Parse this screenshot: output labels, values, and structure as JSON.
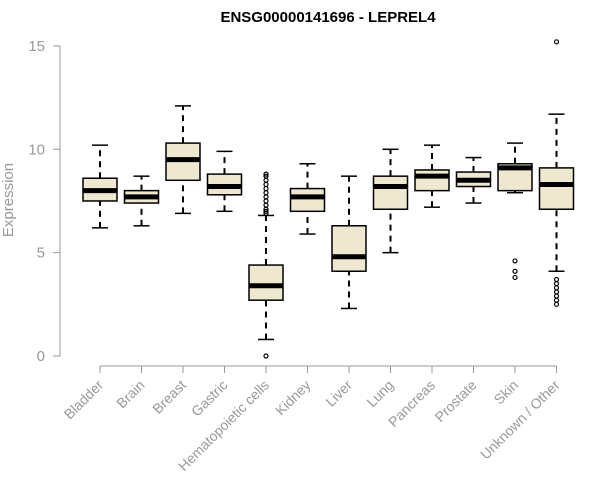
{
  "chart_data": {
    "type": "box",
    "title": "ENSG00000141696 - LEPREL4",
    "xlabel": "",
    "ylabel": "Expression",
    "ylim": [
      0,
      15
    ],
    "yticks": [
      0,
      5,
      10,
      15
    ],
    "box_fill": "#efe8d0",
    "box_stroke": "#000000",
    "categories": [
      "Bladder",
      "Brain",
      "Breast",
      "Gastric",
      "Hematopoietic cells",
      "Kidney",
      "Liver",
      "Lung",
      "Pancreas",
      "Prostate",
      "Skin",
      "Unknown / Other"
    ],
    "boxes": [
      {
        "whisker_low": 6.2,
        "q1": 7.5,
        "median": 8.0,
        "q3": 8.6,
        "whisker_high": 10.2,
        "outliers": []
      },
      {
        "whisker_low": 6.3,
        "q1": 7.4,
        "median": 7.7,
        "q3": 8.0,
        "whisker_high": 8.7,
        "outliers": []
      },
      {
        "whisker_low": 6.9,
        "q1": 8.5,
        "median": 9.5,
        "q3": 10.3,
        "whisker_high": 12.1,
        "outliers": []
      },
      {
        "whisker_low": 7.0,
        "q1": 7.8,
        "median": 8.2,
        "q3": 8.8,
        "whisker_high": 9.9,
        "outliers": []
      },
      {
        "whisker_low": 0.8,
        "q1": 2.7,
        "median": 3.4,
        "q3": 4.4,
        "whisker_high": 6.8,
        "outliers": [
          0.0,
          6.9,
          7.0,
          7.1,
          7.3,
          7.5,
          7.7,
          7.9,
          8.1,
          8.3,
          8.5,
          8.7,
          8.8
        ]
      },
      {
        "whisker_low": 5.9,
        "q1": 7.0,
        "median": 7.7,
        "q3": 8.1,
        "whisker_high": 9.3,
        "outliers": []
      },
      {
        "whisker_low": 2.3,
        "q1": 4.1,
        "median": 4.8,
        "q3": 6.3,
        "whisker_high": 8.7,
        "outliers": []
      },
      {
        "whisker_low": 5.0,
        "q1": 7.1,
        "median": 8.2,
        "q3": 8.7,
        "whisker_high": 10.0,
        "outliers": []
      },
      {
        "whisker_low": 7.2,
        "q1": 8.0,
        "median": 8.7,
        "q3": 9.0,
        "whisker_high": 10.2,
        "outliers": []
      },
      {
        "whisker_low": 7.4,
        "q1": 8.2,
        "median": 8.5,
        "q3": 8.9,
        "whisker_high": 9.6,
        "outliers": []
      },
      {
        "whisker_low": 7.9,
        "q1": 8.0,
        "median": 9.1,
        "q3": 9.3,
        "whisker_high": 10.3,
        "outliers": [
          3.8,
          4.1,
          4.6
        ]
      },
      {
        "whisker_low": 4.1,
        "q1": 7.1,
        "median": 8.3,
        "q3": 9.1,
        "whisker_high": 11.7,
        "outliers": [
          2.5,
          2.7,
          2.9,
          3.1,
          3.3,
          3.5,
          3.7,
          15.2
        ]
      }
    ]
  }
}
